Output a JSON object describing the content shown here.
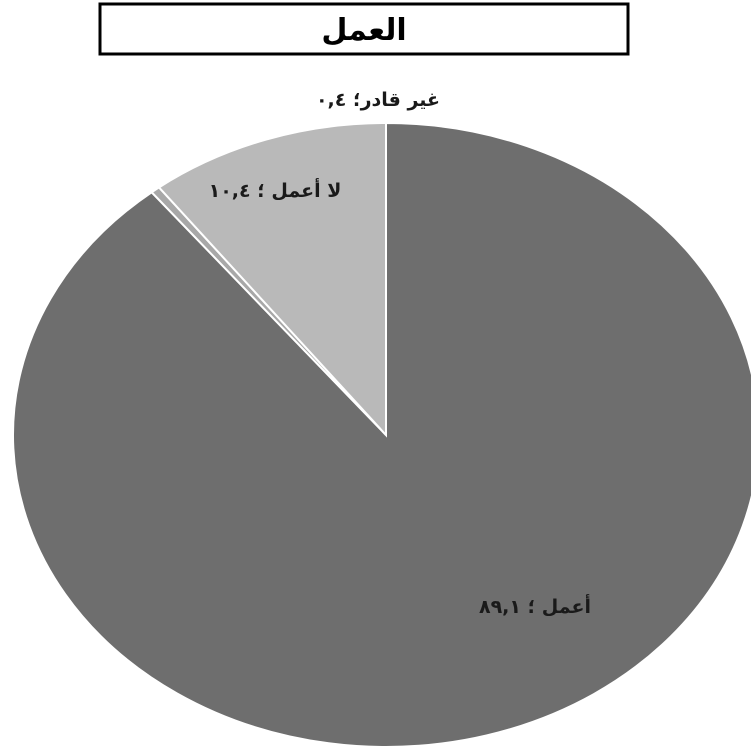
{
  "chart_data": {
    "type": "pie",
    "title": "العمل",
    "slices": [
      {
        "name": "أعمل",
        "value": 89.1,
        "label": "أعمل ؛ ٨٩,١",
        "color": "#6e6e6e"
      },
      {
        "name": "غير قادر",
        "value": 0.4,
        "label": "غير قادر؛ ٠,٤",
        "color": "#a8a8a8"
      },
      {
        "name": "لا أعمل",
        "value": 10.4,
        "label": "لا أعمل ؛ ١٠,٤",
        "color": "#b9b9b9"
      }
    ],
    "start_angle_deg": 0,
    "direction": "clockwise",
    "legend": "none"
  }
}
